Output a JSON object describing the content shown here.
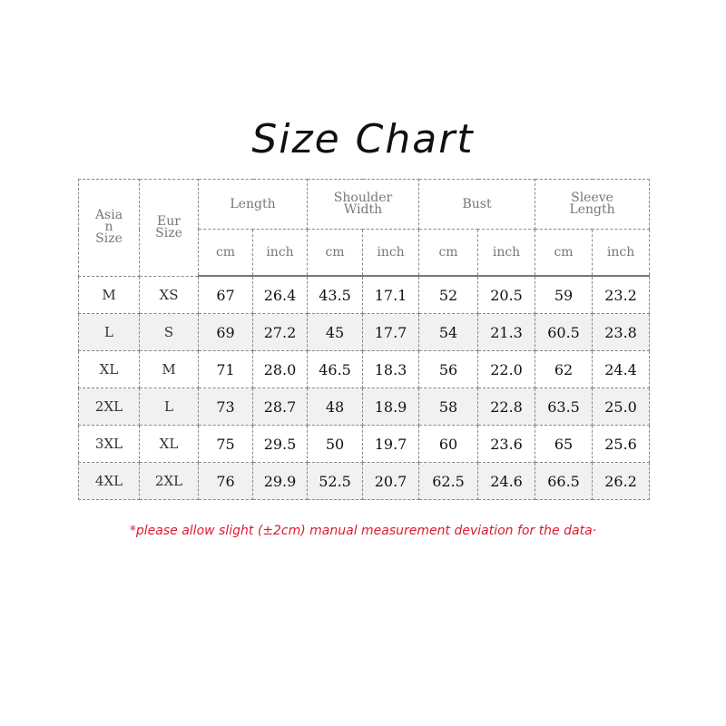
{
  "title": "Size Chart",
  "headers": {
    "asian_size": [
      "Asia",
      "n",
      "Size"
    ],
    "eur_size": [
      "Eur",
      "Size"
    ],
    "groups": [
      [
        "Length"
      ],
      [
        "Shoulder",
        "Width"
      ],
      [
        "Bust"
      ],
      [
        "Sleeve",
        "Length"
      ]
    ],
    "units": [
      "cm",
      "inch",
      "cm",
      "inch",
      "cm",
      "inch",
      "cm",
      "inch"
    ]
  },
  "rows": [
    [
      "M",
      "XS",
      "67",
      "26.4",
      "43.5",
      "17.1",
      "52",
      "20.5",
      "59",
      "23.2"
    ],
    [
      "L",
      "S",
      "69",
      "27.2",
      "45",
      "17.7",
      "54",
      "21.3",
      "60.5",
      "23.8"
    ],
    [
      "XL",
      "M",
      "71",
      "28.0",
      "46.5",
      "18.3",
      "56",
      "22.0",
      "62",
      "24.4"
    ],
    [
      "2XL",
      "L",
      "73",
      "28.7",
      "48",
      "18.9",
      "58",
      "22.8",
      "63.5",
      "25.0"
    ],
    [
      "3XL",
      "XL",
      "75",
      "29.5",
      "50",
      "19.7",
      "60",
      "23.6",
      "65",
      "25.6"
    ],
    [
      "4XL",
      "2XL",
      "76",
      "29.9",
      "52.5",
      "20.7",
      "62.5",
      "24.6",
      "66.5",
      "26.2"
    ]
  ],
  "note": "*please allow slight (±2cm) manual measurement deviation for the data·",
  "colors": {
    "note": "#e0192f",
    "header_text": "#777777",
    "alt_row": "#f1f1f1"
  }
}
